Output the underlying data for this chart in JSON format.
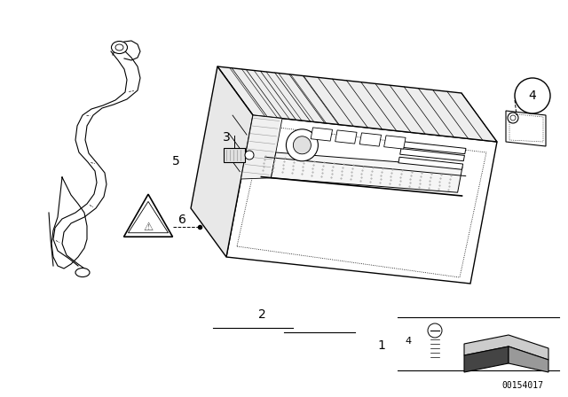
{
  "background_color": "#ffffff",
  "figure_width": 6.4,
  "figure_height": 4.48,
  "dpi": 100,
  "diagram_id": "00154017",
  "line_color": "#000000",
  "label_fontsize": 10,
  "small_label_fontsize": 8
}
